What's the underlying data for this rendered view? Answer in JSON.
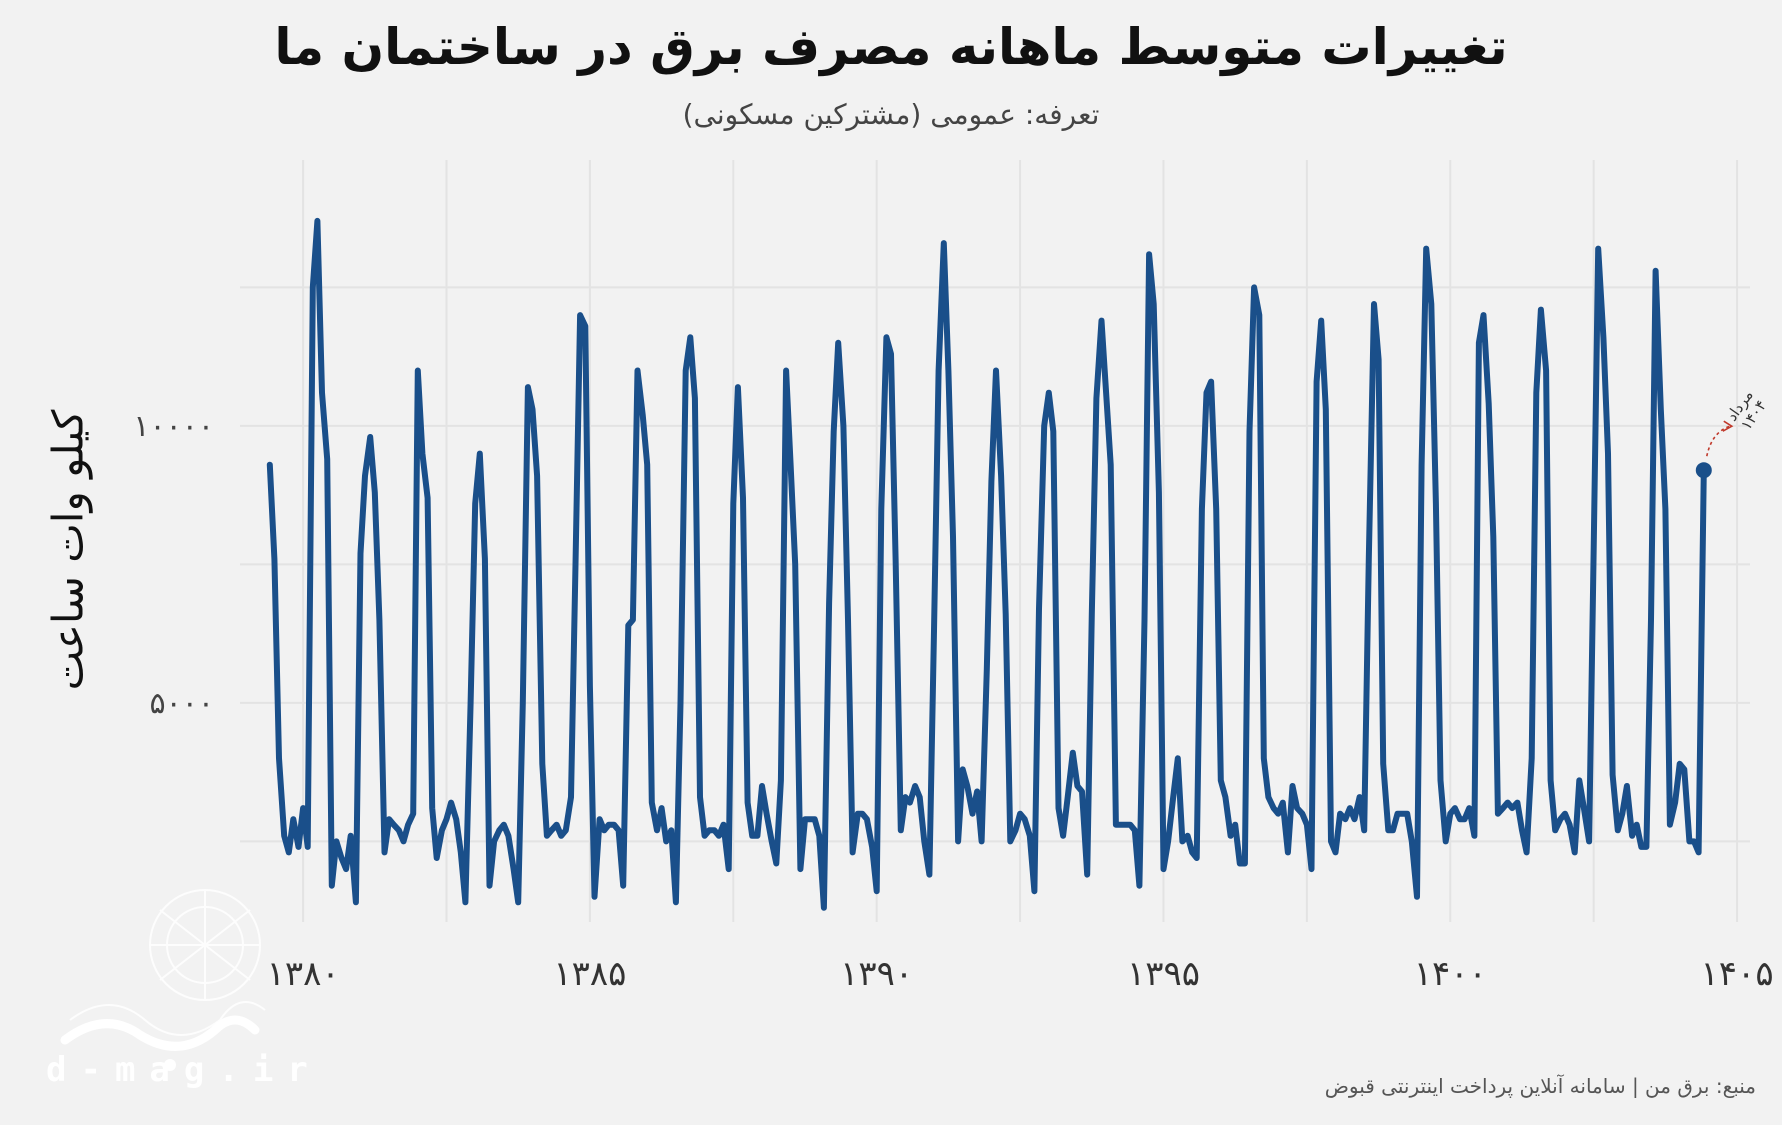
{
  "chart_data": {
    "type": "line",
    "title": "تغییرات متوسط ماهانه مصرف برق در ساختمان ما",
    "subtitle": "تعرفه: عمومی (مشترکین مسکونی)",
    "ylabel": "کیلو وات ساعت",
    "xlabel": "",
    "xlim": [
      1378.9,
      1405.4
    ],
    "ylim": [
      900,
      14800
    ],
    "x_ticks": [
      1380,
      1385,
      1390,
      1395,
      1400,
      1405
    ],
    "x_tick_labels": [
      "۱۳۸۰",
      "۱۳۸۵",
      "۱۳۹۰",
      "۱۳۹۵",
      "۱۴۰۰",
      "۱۴۰۵"
    ],
    "y_ticks": [
      5000,
      10000
    ],
    "y_tick_labels": [
      "۵۰۰۰",
      "۱۰۰۰۰"
    ],
    "grid": true,
    "annotation": {
      "label_line1": "مرداد",
      "label_line2": "۱۴۰۴",
      "x": 1404.42,
      "y": 9200
    },
    "series": [
      {
        "color": "#1a4f8a",
        "points": [
          [
            1379.42,
            9300
          ],
          [
            1379.5,
            7600
          ],
          [
            1379.58,
            4000
          ],
          [
            1379.67,
            2600
          ],
          [
            1379.75,
            2300
          ],
          [
            1379.83,
            2900
          ],
          [
            1379.92,
            2400
          ],
          [
            1380.0,
            3100
          ],
          [
            1380.08,
            2400
          ],
          [
            1380.17,
            12500
          ],
          [
            1380.25,
            13700
          ],
          [
            1380.33,
            10600
          ],
          [
            1380.42,
            9400
          ],
          [
            1380.5,
            1700
          ],
          [
            1380.58,
            2500
          ],
          [
            1380.67,
            2200
          ],
          [
            1380.75,
            2000
          ],
          [
            1380.83,
            2600
          ],
          [
            1380.92,
            1400
          ],
          [
            1381.0,
            7700
          ],
          [
            1381.08,
            9100
          ],
          [
            1381.17,
            9800
          ],
          [
            1381.25,
            8800
          ],
          [
            1381.33,
            6500
          ],
          [
            1381.42,
            2300
          ],
          [
            1381.5,
            2900
          ],
          [
            1381.58,
            2800
          ],
          [
            1381.67,
            2700
          ],
          [
            1381.75,
            2500
          ],
          [
            1381.83,
            2800
          ],
          [
            1381.92,
            3000
          ],
          [
            1382.0,
            11000
          ],
          [
            1382.08,
            9500
          ],
          [
            1382.17,
            8700
          ],
          [
            1382.25,
            3100
          ],
          [
            1382.33,
            2200
          ],
          [
            1382.42,
            2700
          ],
          [
            1382.5,
            2900
          ],
          [
            1382.58,
            3200
          ],
          [
            1382.67,
            2900
          ],
          [
            1382.75,
            2300
          ],
          [
            1382.83,
            1400
          ],
          [
            1382.92,
            5000
          ],
          [
            1383.0,
            8600
          ],
          [
            1383.08,
            9500
          ],
          [
            1383.17,
            7600
          ],
          [
            1383.25,
            1700
          ],
          [
            1383.33,
            2500
          ],
          [
            1383.42,
            2700
          ],
          [
            1383.5,
            2800
          ],
          [
            1383.58,
            2600
          ],
          [
            1383.67,
            2000
          ],
          [
            1383.75,
            1400
          ],
          [
            1383.83,
            5000
          ],
          [
            1383.92,
            10700
          ],
          [
            1384.0,
            10300
          ],
          [
            1384.08,
            9100
          ],
          [
            1384.17,
            3900
          ],
          [
            1384.25,
            2600
          ],
          [
            1384.33,
            2700
          ],
          [
            1384.42,
            2800
          ],
          [
            1384.5,
            2600
          ],
          [
            1384.58,
            2700
          ],
          [
            1384.67,
            3300
          ],
          [
            1384.75,
            7500
          ],
          [
            1384.83,
            12000
          ],
          [
            1384.92,
            11800
          ],
          [
            1385.0,
            5300
          ],
          [
            1385.08,
            1500
          ],
          [
            1385.17,
            2900
          ],
          [
            1385.25,
            2700
          ],
          [
            1385.33,
            2800
          ],
          [
            1385.42,
            2800
          ],
          [
            1385.5,
            2700
          ],
          [
            1385.58,
            1700
          ],
          [
            1385.67,
            6400
          ],
          [
            1385.75,
            6500
          ],
          [
            1385.83,
            11000
          ],
          [
            1385.92,
            10200
          ],
          [
            1386.0,
            9300
          ],
          [
            1386.08,
            3200
          ],
          [
            1386.17,
            2700
          ],
          [
            1386.25,
            3100
          ],
          [
            1386.33,
            2500
          ],
          [
            1386.42,
            2700
          ],
          [
            1386.5,
            1400
          ],
          [
            1386.58,
            5000
          ],
          [
            1386.67,
            11000
          ],
          [
            1386.75,
            11600
          ],
          [
            1386.83,
            10500
          ],
          [
            1386.92,
            3300
          ],
          [
            1387.0,
            2600
          ],
          [
            1387.08,
            2700
          ],
          [
            1387.17,
            2700
          ],
          [
            1387.25,
            2600
          ],
          [
            1387.33,
            2800
          ],
          [
            1387.42,
            2000
          ],
          [
            1387.5,
            8600
          ],
          [
            1387.58,
            10700
          ],
          [
            1387.67,
            8700
          ],
          [
            1387.75,
            3200
          ],
          [
            1387.83,
            2600
          ],
          [
            1387.92,
            2600
          ],
          [
            1388.0,
            3500
          ],
          [
            1388.08,
            3000
          ],
          [
            1388.17,
            2500
          ],
          [
            1388.25,
            2100
          ],
          [
            1388.33,
            3600
          ],
          [
            1388.42,
            11000
          ],
          [
            1388.5,
            9300
          ],
          [
            1388.58,
            7500
          ],
          [
            1388.67,
            2000
          ],
          [
            1388.75,
            2900
          ],
          [
            1388.83,
            2900
          ],
          [
            1388.92,
            2900
          ],
          [
            1389.0,
            2600
          ],
          [
            1389.08,
            1300
          ],
          [
            1389.17,
            6800
          ],
          [
            1389.25,
            9900
          ],
          [
            1389.33,
            11500
          ],
          [
            1389.42,
            10000
          ],
          [
            1389.5,
            6500
          ],
          [
            1389.58,
            2300
          ],
          [
            1389.67,
            3000
          ],
          [
            1389.75,
            3000
          ],
          [
            1389.83,
            2900
          ],
          [
            1389.92,
            2400
          ],
          [
            1390.0,
            1600
          ],
          [
            1390.08,
            8500
          ],
          [
            1390.17,
            11600
          ],
          [
            1390.25,
            11300
          ],
          [
            1390.33,
            7600
          ],
          [
            1390.42,
            2700
          ],
          [
            1390.5,
            3300
          ],
          [
            1390.58,
            3200
          ],
          [
            1390.67,
            3500
          ],
          [
            1390.75,
            3300
          ],
          [
            1390.83,
            2500
          ],
          [
            1390.92,
            1900
          ],
          [
            1391.0,
            6300
          ],
          [
            1391.08,
            11000
          ],
          [
            1391.17,
            13300
          ],
          [
            1391.25,
            11000
          ],
          [
            1391.33,
            8000
          ],
          [
            1391.42,
            2500
          ],
          [
            1391.5,
            3800
          ],
          [
            1391.58,
            3500
          ],
          [
            1391.67,
            3000
          ],
          [
            1391.75,
            3400
          ],
          [
            1391.83,
            2500
          ],
          [
            1391.92,
            5600
          ],
          [
            1392.0,
            9000
          ],
          [
            1392.08,
            11000
          ],
          [
            1392.17,
            9100
          ],
          [
            1392.25,
            6600
          ],
          [
            1392.33,
            2500
          ],
          [
            1392.42,
            2700
          ],
          [
            1392.5,
            3000
          ],
          [
            1392.58,
            2900
          ],
          [
            1392.67,
            2600
          ],
          [
            1392.75,
            1600
          ],
          [
            1392.83,
            6700
          ],
          [
            1392.92,
            10000
          ],
          [
            1393.0,
            10600
          ],
          [
            1393.08,
            9900
          ],
          [
            1393.17,
            3100
          ],
          [
            1393.25,
            2600
          ],
          [
            1393.33,
            3300
          ],
          [
            1393.42,
            4100
          ],
          [
            1393.5,
            3500
          ],
          [
            1393.58,
            3400
          ],
          [
            1393.67,
            1900
          ],
          [
            1393.75,
            6600
          ],
          [
            1393.83,
            10500
          ],
          [
            1393.92,
            11900
          ],
          [
            1394.0,
            10600
          ],
          [
            1394.08,
            9300
          ],
          [
            1394.17,
            2800
          ],
          [
            1394.25,
            2800
          ],
          [
            1394.33,
            2800
          ],
          [
            1394.42,
            2800
          ],
          [
            1394.5,
            2700
          ],
          [
            1394.58,
            1700
          ],
          [
            1394.67,
            6500
          ],
          [
            1394.75,
            13100
          ],
          [
            1394.83,
            12200
          ],
          [
            1394.92,
            8800
          ],
          [
            1395.0,
            2000
          ],
          [
            1395.08,
            2500
          ],
          [
            1395.17,
            3300
          ],
          [
            1395.25,
            4000
          ],
          [
            1395.33,
            2500
          ],
          [
            1395.42,
            2600
          ],
          [
            1395.5,
            2300
          ],
          [
            1395.58,
            2200
          ],
          [
            1395.67,
            8500
          ],
          [
            1395.75,
            10600
          ],
          [
            1395.83,
            10800
          ],
          [
            1395.92,
            8500
          ],
          [
            1396.0,
            3600
          ],
          [
            1396.08,
            3300
          ],
          [
            1396.17,
            2600
          ],
          [
            1396.25,
            2800
          ],
          [
            1396.33,
            2100
          ],
          [
            1396.42,
            2100
          ],
          [
            1396.5,
            9900
          ],
          [
            1396.58,
            12500
          ],
          [
            1396.67,
            12000
          ],
          [
            1396.75,
            4000
          ],
          [
            1396.83,
            3300
          ],
          [
            1396.92,
            3100
          ],
          [
            1397.0,
            3000
          ],
          [
            1397.08,
            3200
          ],
          [
            1397.17,
            2300
          ],
          [
            1397.25,
            3500
          ],
          [
            1397.33,
            3100
          ],
          [
            1397.42,
            3000
          ],
          [
            1397.5,
            2800
          ],
          [
            1397.58,
            2000
          ],
          [
            1397.67,
            10800
          ],
          [
            1397.75,
            11900
          ],
          [
            1397.83,
            10300
          ],
          [
            1397.92,
            2500
          ],
          [
            1398.0,
            2300
          ],
          [
            1398.08,
            3000
          ],
          [
            1398.17,
            2900
          ],
          [
            1398.25,
            3100
          ],
          [
            1398.33,
            2900
          ],
          [
            1398.42,
            3300
          ],
          [
            1398.5,
            2700
          ],
          [
            1398.58,
            7600
          ],
          [
            1398.67,
            12200
          ],
          [
            1398.75,
            11200
          ],
          [
            1398.83,
            3900
          ],
          [
            1398.92,
            2700
          ],
          [
            1399.0,
            2700
          ],
          [
            1399.08,
            3000
          ],
          [
            1399.17,
            3000
          ],
          [
            1399.25,
            3000
          ],
          [
            1399.33,
            2500
          ],
          [
            1399.42,
            1500
          ],
          [
            1399.5,
            9300
          ],
          [
            1399.58,
            13200
          ],
          [
            1399.67,
            12200
          ],
          [
            1399.75,
            8600
          ],
          [
            1399.83,
            3600
          ],
          [
            1399.92,
            2500
          ],
          [
            1400.0,
            3000
          ],
          [
            1400.08,
            3100
          ],
          [
            1400.17,
            2900
          ],
          [
            1400.25,
            2900
          ],
          [
            1400.33,
            3100
          ],
          [
            1400.42,
            2600
          ],
          [
            1400.5,
            11500
          ],
          [
            1400.58,
            12000
          ],
          [
            1400.67,
            10400
          ],
          [
            1400.75,
            8000
          ],
          [
            1400.83,
            3000
          ],
          [
            1400.92,
            3100
          ],
          [
            1401.0,
            3200
          ],
          [
            1401.08,
            3100
          ],
          [
            1401.17,
            3200
          ],
          [
            1401.25,
            2700
          ],
          [
            1401.33,
            2300
          ],
          [
            1401.42,
            4000
          ],
          [
            1401.5,
            10600
          ],
          [
            1401.58,
            12100
          ],
          [
            1401.67,
            11000
          ],
          [
            1401.75,
            3600
          ],
          [
            1401.83,
            2700
          ],
          [
            1401.92,
            2900
          ],
          [
            1402.0,
            3000
          ],
          [
            1402.08,
            2800
          ],
          [
            1402.17,
            2300
          ],
          [
            1402.25,
            3600
          ],
          [
            1402.33,
            3100
          ],
          [
            1402.42,
            2500
          ],
          [
            1402.5,
            7800
          ],
          [
            1402.58,
            13200
          ],
          [
            1402.67,
            11600
          ],
          [
            1402.75,
            9500
          ],
          [
            1402.83,
            3700
          ],
          [
            1402.92,
            2700
          ],
          [
            1403.0,
            3000
          ],
          [
            1403.08,
            3500
          ],
          [
            1403.17,
            2600
          ],
          [
            1403.25,
            2800
          ],
          [
            1403.33,
            2400
          ],
          [
            1403.42,
            2400
          ],
          [
            1403.5,
            6500
          ],
          [
            1403.58,
            12800
          ],
          [
            1403.67,
            10300
          ],
          [
            1403.75,
            8500
          ],
          [
            1403.83,
            2800
          ],
          [
            1403.92,
            3200
          ],
          [
            1404.0,
            3900
          ],
          [
            1404.08,
            3800
          ],
          [
            1404.17,
            2500
          ],
          [
            1404.25,
            2500
          ],
          [
            1404.33,
            2300
          ],
          [
            1404.42,
            9200
          ]
        ]
      }
    ]
  },
  "source": "منبع: برق من | سامانه آنلاین پرداخت اینترنتی قبوض",
  "watermark": {
    "text": "d-mag.ir"
  }
}
